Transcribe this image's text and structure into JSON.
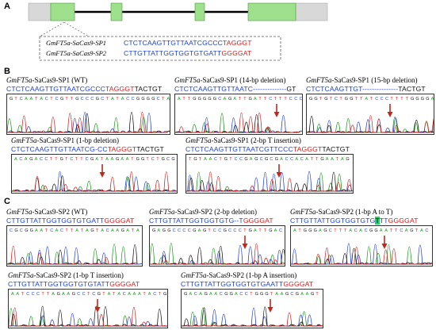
{
  "panel_labels": {
    "a": "A",
    "b": "B",
    "c": "C"
  },
  "gene_box": {
    "sp1_name": "GmFT5a-SaCas9-SP1",
    "sp1_seq_blue": "CTCTCAAGTTGTTAATCGCCC",
    "sp1_seq_red": "TAGGGT",
    "sp2_name": "GmFT5a-SaCas9-SP2",
    "sp2_seq_blue": "CTTGTTATTGGTGGTGTGATT",
    "sp2_seq_red": "GGGGAT"
  },
  "panel_b": [
    {
      "prefix": "GmFT5a",
      "suffix": "-SaCas9-SP1 (WT)",
      "blue": "CTCTCAAGTTGTTAATCGCCC",
      "red": "TAGGGT",
      "black": "TACTGT",
      "arrow": false
    },
    {
      "prefix": "GmFT5a",
      "suffix": "-SaCas9-SP1 (14-bp deletion)",
      "blue": "CTCTCAAGTTGTTAATC--------------",
      "red": "",
      "black": "GT",
      "arrow": true
    },
    {
      "prefix": "GmFT5a",
      "suffix": "-SaCas9-SP1 (15-bp deletion)",
      "blue": "CTCTCAAGTTGT---------------",
      "red": "",
      "black": "TACTGT",
      "arrow": true
    },
    {
      "prefix": "GmFT5a",
      "suffix": "-SaCas9-SP1 (1-bp deletion)",
      "blue": "CTCTCAAGTTGTTAATCG-CC",
      "red": "TAGGGT",
      "black": "TACTGT",
      "arrow": true
    },
    {
      "prefix": "GmFT5a",
      "suffix": "-SaCas9-SP1 (2-bp T insertion)",
      "blue": "CTCTCAAGTTGTTAATCGTTCCC",
      "red": "TAGGGT",
      "black": "TACTGT",
      "arrow": true
    }
  ],
  "panel_c": [
    {
      "prefix": "GmFT5a",
      "suffix": "-SaCas9-SP2 (WT)",
      "blue": "CTTGTTATTGGTGGTGTGATT",
      "hl": "",
      "blue2": "",
      "red": "GGGGAT",
      "arrow": false
    },
    {
      "prefix": "GmFT5a",
      "suffix": "-SaCas9-SP2 (2-bp deletion)",
      "blue": "CTTGTTATTGGTGGTGTG--T",
      "hl": "",
      "blue2": "",
      "red": "GGGGAT",
      "arrow": true
    },
    {
      "prefix": "GmFT5a",
      "suffix": "-SaCas9-SP2 (1-bp A to T)",
      "blue": "CTTGTTATTGGTGGTGTG",
      "hl": "T",
      "blue2": "TT",
      "red": "GGGGAT",
      "arrow": true
    },
    {
      "prefix": "GmFT5a",
      "suffix": "-SaCas9-SP2 (1-bp T insertion)",
      "blue": "CTTGTTATTGGTGGTGTGTATT",
      "hl": "",
      "blue2": "",
      "red": "GGGGAT",
      "arrow": true
    },
    {
      "prefix": "GmFT5a",
      "suffix": "-SaCas9-SP2 (1-bp A insertion)",
      "blue": "CTTGTTATTGGTGGTGTGAATT",
      "hl": "",
      "blue2": "",
      "red": "GGGGAT",
      "arrow": true
    }
  ],
  "colors": {
    "exon": "#9ee08b",
    "exon_edge": "#5aa64a",
    "utr": "#d8d8d8",
    "intron": "#000000",
    "arrow": "#c0281e",
    "seq_blue": "#1f3fd6",
    "seq_red": "#d21f1f"
  }
}
